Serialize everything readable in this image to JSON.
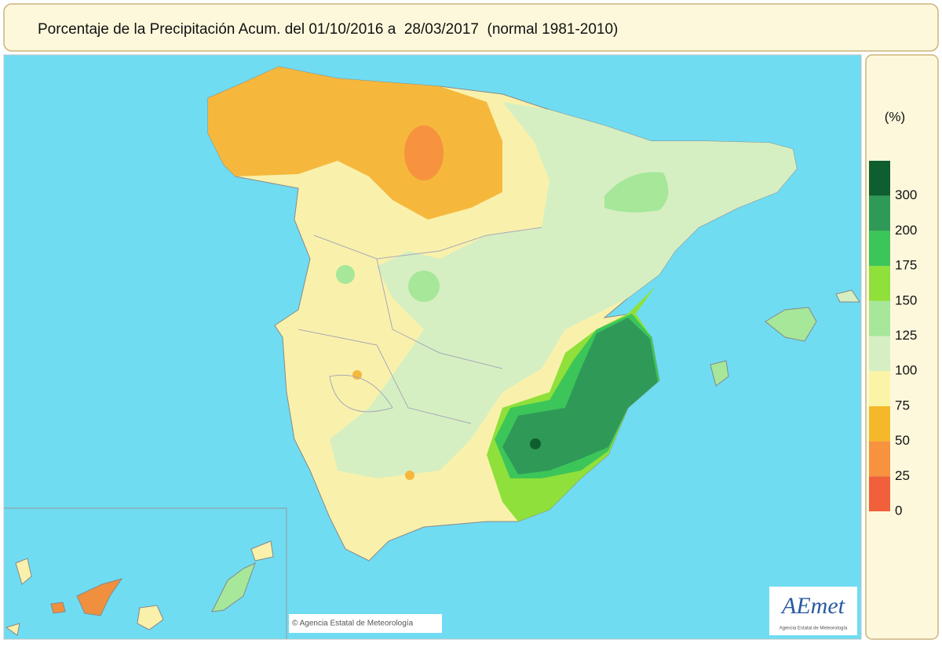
{
  "header": {
    "title": "Porcentaje de la Precipitación Acum. del 01/10/2016 a  28/03/2017  (normal 1981-2010)"
  },
  "legend": {
    "unit": "(%)",
    "ticks": [
      0,
      25,
      50,
      75,
      100,
      125,
      150,
      175,
      200,
      300
    ],
    "colors": [
      "#f0603a",
      "#f7923f",
      "#f5b82a",
      "#fbf3a6",
      "#d6efc2",
      "#a6e79a",
      "#8fe03a",
      "#3cc65a",
      "#2f9a58",
      "#0f5e30"
    ]
  },
  "footer": {
    "credit": "© Agencia Estatal de Meteorología",
    "logo": "AEmet",
    "logo_caption": "Agencia Estatal de Meteorología"
  }
}
